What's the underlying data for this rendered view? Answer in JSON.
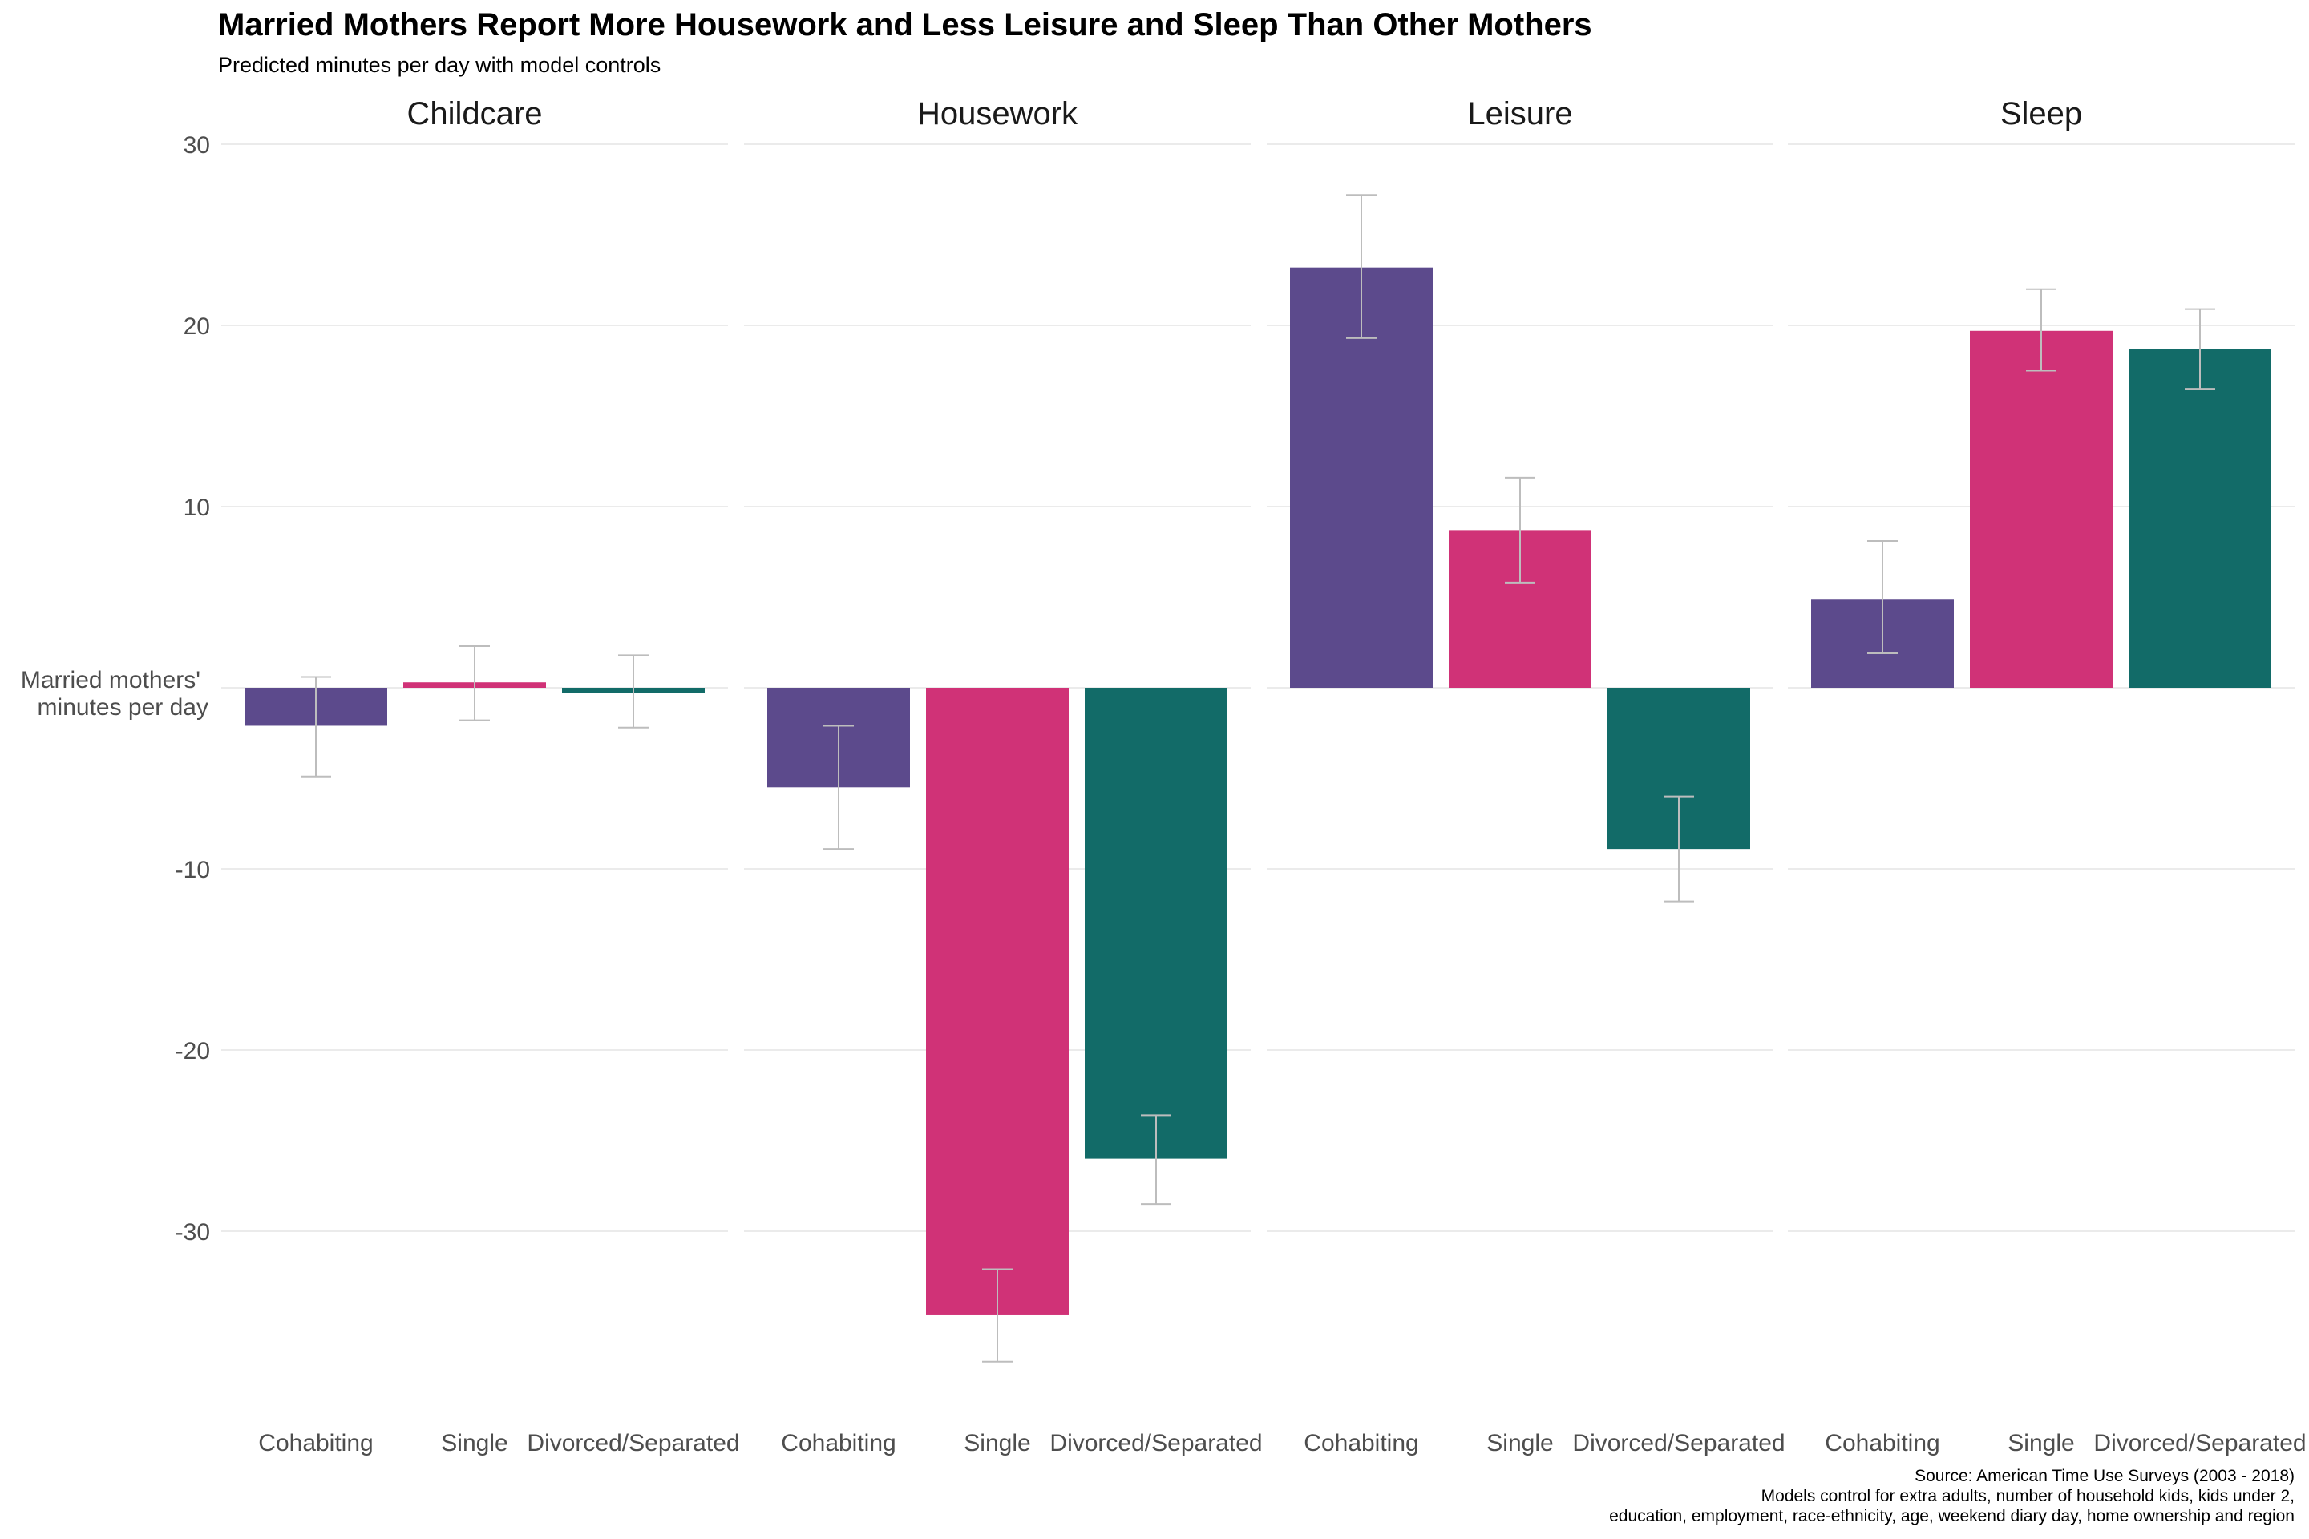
{
  "chart_data": {
    "type": "bar",
    "title": "Married Mothers Report More Housework and Less Leisure and Sleep Than Other Mothers",
    "subtitle": "Predicted minutes per day with model controls",
    "ylabel_lines": [
      "Married mothers'",
      "minutes per day"
    ],
    "ylim": [
      -39,
      31
    ],
    "yticks": [
      30,
      20,
      10,
      -10,
      -20,
      -30
    ],
    "grid": true,
    "legend": "none",
    "categories": [
      "Cohabiting",
      "Single",
      "Divorced/Separated"
    ],
    "colors": {
      "Cohabiting": "#5c4a8c",
      "Single": "#d03277",
      "Divorced/Separated": "#126b68"
    },
    "facets": [
      {
        "name": "Childcare",
        "values": [
          -2.1,
          0.3,
          -0.3
        ],
        "ci_low": [
          -4.9,
          -1.8,
          -2.2
        ],
        "ci_high": [
          0.6,
          2.3,
          1.8
        ]
      },
      {
        "name": "Housework",
        "values": [
          -5.5,
          -34.6,
          -26.0
        ],
        "ci_low": [
          -8.9,
          -37.2,
          -28.5
        ],
        "ci_high": [
          -2.1,
          -32.1,
          -23.6
        ]
      },
      {
        "name": "Leisure",
        "values": [
          23.2,
          8.7,
          -8.9
        ],
        "ci_low": [
          19.3,
          5.8,
          -11.8
        ],
        "ci_high": [
          27.2,
          11.6,
          -6.0
        ]
      },
      {
        "name": "Sleep",
        "values": [
          4.9,
          19.7,
          18.7
        ],
        "ci_low": [
          1.9,
          17.5,
          16.5
        ],
        "ci_high": [
          8.1,
          22.0,
          20.9
        ]
      }
    ],
    "caption": [
      "Source: American Time Use Surveys (2003 - 2018)",
      "Models control for extra adults, number of household kids, kids under 2,",
      "education, employment, race-ethnicity, age, weekend diary day, home ownership and region"
    ]
  }
}
